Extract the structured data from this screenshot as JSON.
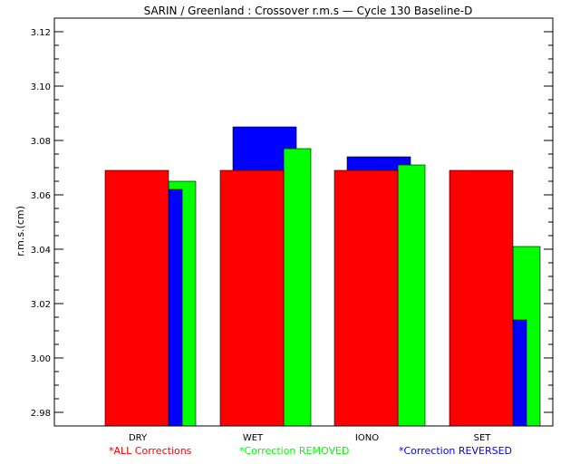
{
  "chart_data": {
    "type": "bar",
    "title": "SARIN / Greenland : Crossover r.m.s — Cycle 130 Baseline-D",
    "ylabel": "r.m.s.(cm)",
    "xlabel": "",
    "categories": [
      "DRY",
      "WET",
      "IONO",
      "SET"
    ],
    "ylim": [
      2.975,
      3.125
    ],
    "yticks": [
      "3.12",
      "3.10",
      "3.08",
      "3.06",
      "3.04",
      "3.02",
      "3.00",
      "2.98"
    ],
    "grid": false,
    "legend_position": "bottom",
    "series": [
      {
        "name": "*ALL Corrections",
        "color": "#ff0000",
        "values": [
          3.069,
          3.069,
          3.069,
          3.069
        ]
      },
      {
        "name": "*Correction REMOVED",
        "color": "#00ff00",
        "values": [
          3.065,
          3.077,
          3.071,
          3.041
        ]
      },
      {
        "name": "*Correction REVERSED",
        "color": "#0000ff",
        "values": [
          3.062,
          3.085,
          3.074,
          3.014
        ]
      }
    ]
  }
}
